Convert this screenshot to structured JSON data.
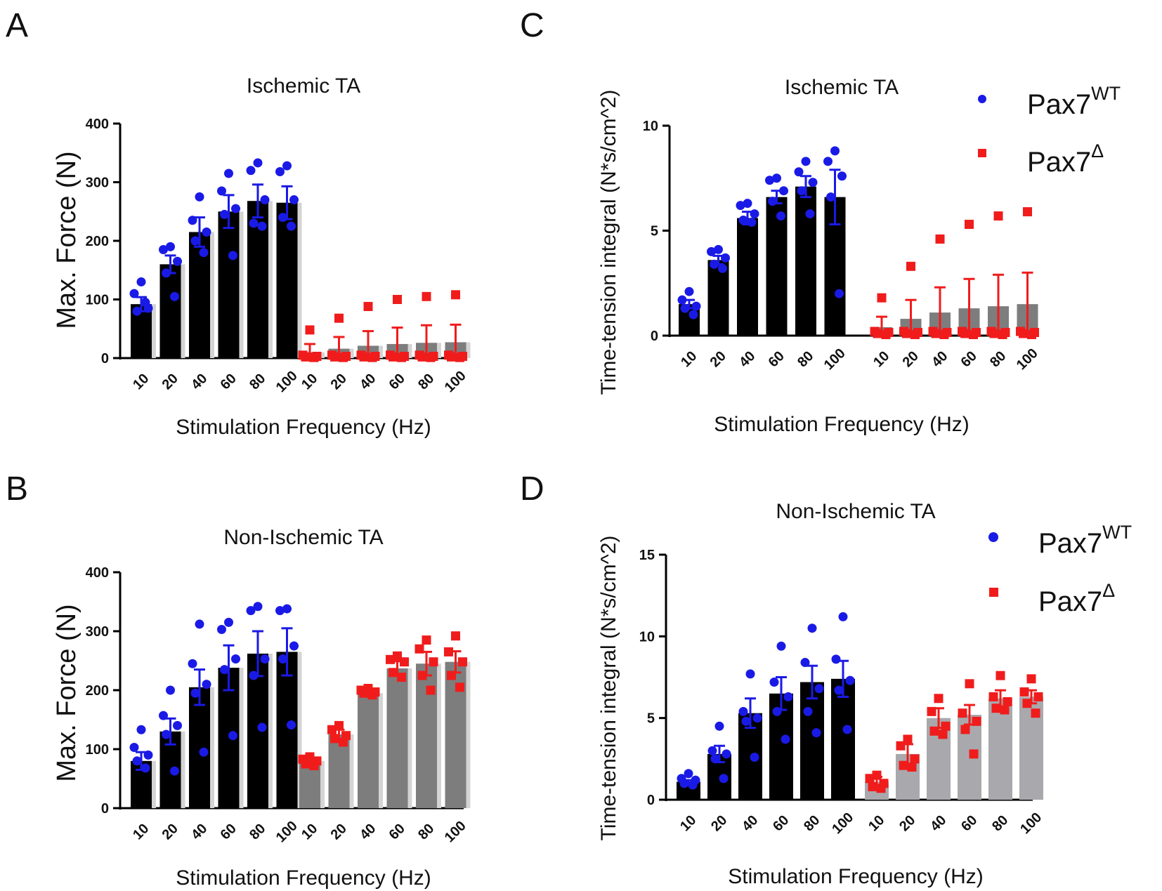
{
  "colors": {
    "wt_point": "#1a1ae6",
    "ko_point": "#f01c1c",
    "wt_bar": "#000000",
    "ko_bar_dark": "#7d7d7d",
    "ko_bar_light": "#a9a9ad",
    "bar_shadow": "#d4d4d4",
    "axis": "#000000"
  },
  "legend": {
    "wt_base": "Pax7",
    "wt_sup": "WT",
    "ko_base": "Pax7",
    "ko_sup": "Δ"
  },
  "chart_data": [
    {
      "panel": "A",
      "type": "bar",
      "title": "Ischemic TA",
      "xlabel": "Stimulation Frequency (Hz)",
      "ylabel": "Max. Force (N)",
      "ylim": [
        0,
        400
      ],
      "yticks": [
        0,
        100,
        200,
        300,
        400
      ],
      "categories": [
        "10",
        "20",
        "40",
        "60",
        "80",
        "100"
      ],
      "series": [
        {
          "name": "Pax7WT",
          "marker": "circle",
          "values": [
            92,
            160,
            215,
            250,
            268,
            265
          ],
          "sem": [
            12,
            15,
            25,
            28,
            28,
            28
          ],
          "points": [
            [
              130,
              110,
              85,
              80,
              95
            ],
            [
              190,
              185,
              165,
              145,
              105
            ],
            [
              275,
              235,
              215,
              200,
              180
            ],
            [
              315,
              285,
              255,
              245,
              175
            ],
            [
              333,
              320,
              270,
              230,
              225
            ],
            [
              328,
              318,
              270,
              240,
              225
            ]
          ]
        },
        {
          "name": "Pax7Δ",
          "marker": "square",
          "values": [
            10,
            16,
            21,
            24,
            26,
            27
          ],
          "sem": [
            14,
            20,
            25,
            28,
            30,
            30
          ],
          "points": [
            [
              48,
              5,
              3,
              2,
              1
            ],
            [
              68,
              5,
              3,
              2,
              1
            ],
            [
              88,
              5,
              3,
              2,
              1
            ],
            [
              100,
              5,
              3,
              2,
              1
            ],
            [
              105,
              5,
              3,
              2,
              1
            ],
            [
              108,
              5,
              3,
              2,
              1
            ]
          ]
        }
      ]
    },
    {
      "panel": "B",
      "type": "bar",
      "title": "Non-Ischemic TA",
      "xlabel": "Stimulation Frequency (Hz)",
      "ylabel": "Max. Force (N)",
      "ylim": [
        0,
        400
      ],
      "yticks": [
        0,
        100,
        200,
        300,
        400
      ],
      "categories": [
        "10",
        "20",
        "40",
        "60",
        "80",
        "100"
      ],
      "series": [
        {
          "name": "Pax7WT",
          "marker": "circle",
          "values": [
            80,
            130,
            205,
            238,
            262,
            265
          ],
          "sem": [
            15,
            22,
            30,
            38,
            38,
            40
          ],
          "points": [
            [
              133,
              103,
              90,
              80,
              68
            ],
            [
              200,
              157,
              140,
              125,
              63
            ],
            [
              312,
              245,
              210,
              195,
              95
            ],
            [
              315,
              303,
              253,
              235,
              123
            ],
            [
              342,
              335,
              253,
              225,
              137
            ],
            [
              338,
              335,
              275,
              253,
              141
            ]
          ]
        },
        {
          "name": "Pax7Δ",
          "marker": "square",
          "values": [
            80,
            125,
            195,
            237,
            245,
            248
          ],
          "sem": [
            4,
            8,
            4,
            12,
            20,
            18
          ],
          "points": [
            [
              87,
              83,
              80,
              75,
              72
            ],
            [
              140,
              133,
              123,
              118,
              112
            ],
            [
              203,
              200,
              197,
              195,
              192
            ],
            [
              258,
              252,
              248,
              230,
              222
            ],
            [
              285,
              270,
              248,
              225,
              200
            ],
            [
              292,
              265,
              248,
              225,
              205
            ]
          ]
        }
      ]
    },
    {
      "panel": "C",
      "type": "bar",
      "title": "Ischemic TA",
      "xlabel": "Stimulation Frequency (Hz)",
      "ylabel": "Time-tension integral (N*s/cm^2)",
      "ylim": [
        0,
        10
      ],
      "yticks": [
        0,
        5,
        10
      ],
      "categories": [
        "10",
        "20",
        "40",
        "60",
        "80",
        "100"
      ],
      "series": [
        {
          "name": "Pax7WT",
          "marker": "circle",
          "values": [
            1.5,
            3.6,
            5.6,
            6.6,
            7.1,
            6.6
          ],
          "sem": [
            0.2,
            0.2,
            0.3,
            0.3,
            0.5,
            1.3
          ],
          "points": [
            [
              2.1,
              1.7,
              1.4,
              1.3,
              1.0
            ],
            [
              4.1,
              4.0,
              3.7,
              3.4,
              3.2
            ],
            [
              6.3,
              6.2,
              5.8,
              5.5,
              5.4
            ],
            [
              7.5,
              7.4,
              6.9,
              6.4,
              5.7
            ],
            [
              8.3,
              7.8,
              7.3,
              6.9,
              5.8
            ],
            [
              8.8,
              8.3,
              7.6,
              6.6,
              2.0
            ]
          ]
        },
        {
          "name": "Pax7Δ",
          "marker": "square",
          "values": [
            0.4,
            0.8,
            1.1,
            1.3,
            1.4,
            1.5
          ],
          "sem": [
            0.5,
            0.9,
            1.2,
            1.4,
            1.5,
            1.5
          ],
          "points": [
            [
              1.8,
              0.2,
              0.15,
              0.1,
              0.05
            ],
            [
              3.3,
              0.2,
              0.15,
              0.1,
              0.05
            ],
            [
              4.6,
              0.2,
              0.15,
              0.1,
              0.05
            ],
            [
              5.3,
              0.2,
              0.15,
              0.1,
              0.05
            ],
            [
              5.7,
              0.2,
              0.15,
              0.1,
              0.05
            ],
            [
              5.9,
              0.2,
              0.15,
              0.1,
              0.05
            ]
          ]
        }
      ]
    },
    {
      "panel": "D",
      "type": "bar",
      "title": "Non-Ischemic TA",
      "xlabel": "Stimulation Frequency (Hz)",
      "ylabel": "Time-tension integral (N*s/cm^2)",
      "ylim": [
        0,
        15
      ],
      "yticks": [
        0,
        5,
        10,
        15
      ],
      "categories": [
        "10",
        "20",
        "40",
        "60",
        "80",
        "100"
      ],
      "series": [
        {
          "name": "Pax7WT",
          "marker": "circle",
          "values": [
            1.1,
            2.8,
            5.3,
            6.5,
            7.2,
            7.4
          ],
          "sem": [
            0.1,
            0.5,
            0.9,
            1.0,
            1.0,
            1.1
          ],
          "points": [
            [
              1.6,
              1.3,
              1.2,
              1.0,
              0.9
            ],
            [
              4.5,
              3.0,
              2.8,
              2.5,
              1.3
            ],
            [
              7.7,
              5.4,
              5.0,
              4.8,
              2.6
            ],
            [
              9.4,
              7.2,
              6.3,
              5.4,
              3.7
            ],
            [
              10.5,
              8.4,
              6.8,
              5.4,
              4.1
            ],
            [
              11.2,
              8.6,
              7.3,
              6.7,
              4.3
            ]
          ]
        },
        {
          "name": "Pax7Δ",
          "marker": "square",
          "values": [
            1.1,
            2.8,
            5.0,
            5.2,
            6.2,
            6.3
          ],
          "sem": [
            0.3,
            0.6,
            0.6,
            0.6,
            0.5,
            0.4
          ],
          "points": [
            [
              1.5,
              1.3,
              1.0,
              0.8,
              0.7
            ],
            [
              3.7,
              3.3,
              2.5,
              2.1,
              2.0
            ],
            [
              6.2,
              5.4,
              4.5,
              4.2,
              4.0
            ],
            [
              7.1,
              5.3,
              4.8,
              4.3,
              2.8
            ],
            [
              7.6,
              6.3,
              6.0,
              5.6,
              5.5
            ],
            [
              7.4,
              6.6,
              6.3,
              5.9,
              5.3
            ]
          ]
        }
      ]
    }
  ],
  "panels": [
    {
      "letter": "A"
    },
    {
      "letter": "B"
    },
    {
      "letter": "C"
    },
    {
      "letter": "D"
    }
  ]
}
